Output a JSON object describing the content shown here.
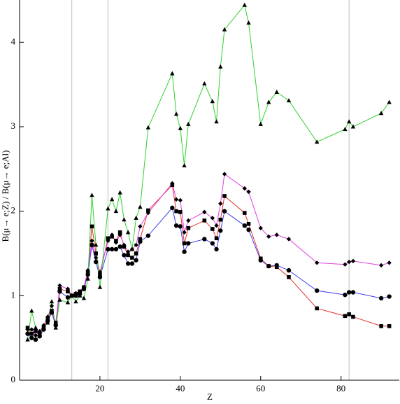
{
  "chart_data": {
    "type": "line",
    "x_label": "Z",
    "y_label": "B(μ→ e;Z) / B(μ→ e;Al)",
    "x": [
      2,
      3,
      4,
      5,
      6,
      7,
      8,
      9,
      10,
      12,
      13,
      14,
      15,
      16,
      17,
      18,
      19,
      20,
      22,
      23,
      24,
      25,
      26,
      27,
      28,
      29,
      30,
      32,
      38,
      39,
      40,
      41,
      42,
      46,
      48,
      49,
      50,
      51,
      56,
      57,
      60,
      62,
      64,
      67,
      74,
      81,
      82,
      83,
      90,
      92
    ],
    "series": [
      {
        "color": "#3a3af0",
        "marker": "circle",
        "values": [
          0.55,
          0.5,
          0.48,
          0.52,
          0.6,
          0.7,
          0.8,
          0.65,
          1.05,
          0.98,
          1.0,
          1.0,
          1.02,
          1.08,
          1.25,
          1.6,
          1.4,
          1.22,
          1.55,
          1.55,
          1.55,
          1.58,
          1.48,
          1.38,
          1.38,
          1.42,
          1.64,
          1.71,
          2.04,
          1.83,
          1.82,
          1.52,
          1.62,
          1.67,
          1.62,
          1.55,
          1.77,
          2.0,
          1.83,
          1.78,
          1.42,
          1.35,
          1.36,
          1.3,
          1.06,
          1.01,
          1.04,
          1.04,
          0.97,
          0.99
        ]
      },
      {
        "color": "#e83030",
        "marker": "square",
        "values": [
          0.62,
          0.55,
          0.58,
          0.55,
          0.62,
          0.72,
          0.82,
          0.68,
          1.08,
          1.05,
          1.0,
          1.02,
          1.05,
          1.1,
          1.28,
          1.82,
          1.5,
          1.25,
          1.68,
          1.7,
          1.65,
          1.75,
          1.58,
          1.48,
          1.45,
          1.5,
          1.67,
          2.01,
          2.31,
          2.0,
          1.99,
          1.62,
          1.8,
          1.89,
          1.79,
          1.68,
          1.9,
          2.18,
          1.98,
          1.85,
          1.44,
          1.35,
          1.34,
          1.22,
          0.85,
          0.76,
          0.78,
          0.75,
          0.64,
          0.64
        ]
      },
      {
        "color": "#e040e0",
        "marker": "diamond",
        "values": [
          0.6,
          0.6,
          0.53,
          0.58,
          0.65,
          0.75,
          0.88,
          0.65,
          1.12,
          1.08,
          1.0,
          1.03,
          1.05,
          1.1,
          1.3,
          1.65,
          1.45,
          1.28,
          1.65,
          1.72,
          1.63,
          1.72,
          1.6,
          1.52,
          1.55,
          1.6,
          1.82,
          1.98,
          2.33,
          2.14,
          2.13,
          1.75,
          1.89,
          1.99,
          1.92,
          1.83,
          2.09,
          2.44,
          2.27,
          2.23,
          1.8,
          1.7,
          1.72,
          1.67,
          1.39,
          1.37,
          1.4,
          1.41,
          1.36,
          1.39
        ]
      },
      {
        "color": "#30d030",
        "marker": "triangle",
        "values": [
          0.48,
          0.82,
          0.62,
          0.55,
          0.62,
          0.68,
          0.93,
          0.62,
          0.95,
          0.92,
          1.0,
          0.93,
          1.0,
          0.97,
          1.2,
          2.19,
          1.6,
          1.1,
          2.03,
          2.14,
          2.0,
          2.22,
          1.9,
          1.75,
          1.55,
          1.92,
          2.05,
          2.99,
          3.63,
          3.15,
          2.98,
          2.54,
          3.03,
          3.51,
          3.3,
          3.06,
          3.71,
          4.15,
          4.44,
          4.23,
          3.03,
          3.29,
          3.41,
          3.31,
          2.82,
          2.97,
          3.06,
          3.0,
          3.16,
          3.29
        ]
      }
    ],
    "xlim": [
      0,
      94.5
    ],
    "ylim": [
      0,
      4.5
    ],
    "xticks": [
      20,
      40,
      60,
      80
    ],
    "yticks": [
      0,
      1,
      2,
      3,
      4
    ],
    "vlines": [
      13,
      22,
      82
    ]
  }
}
